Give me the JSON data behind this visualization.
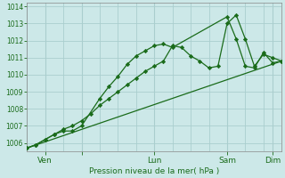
{
  "bg_color": "#cce8e8",
  "grid_color": "#aacece",
  "line_color": "#1a6b1a",
  "marker_color": "#1a6b1a",
  "ylim": [
    1005.5,
    1014.2
  ],
  "yticks": [
    1006,
    1007,
    1008,
    1009,
    1010,
    1011,
    1012,
    1013,
    1014
  ],
  "xlabel": "Pression niveau de la mer( hPa )",
  "xlim": [
    0,
    28
  ],
  "xtick_positions": [
    2,
    6,
    14,
    22,
    27
  ],
  "xtick_labels": [
    "Ven",
    "",
    "Lun",
    "Sam",
    "Dim"
  ],
  "xtick_minor_positions": [
    0,
    2,
    4,
    6,
    8,
    10,
    12,
    14,
    16,
    18,
    20,
    22,
    24,
    26,
    28
  ],
  "series1_x": [
    0,
    1,
    2,
    3,
    4,
    5,
    6,
    8,
    9,
    10,
    11,
    12,
    13,
    14,
    15,
    16,
    22,
    23,
    24,
    25,
    26,
    27,
    28
  ],
  "series1_y": [
    1005.7,
    1005.9,
    1006.2,
    1006.5,
    1006.7,
    1006.7,
    1007.0,
    1008.6,
    1009.3,
    1009.9,
    1010.6,
    1011.1,
    1011.4,
    1011.7,
    1011.8,
    1011.6,
    1013.4,
    1012.1,
    1010.5,
    1010.4,
    1011.3,
    1010.7,
    1010.8
  ],
  "series2_x": [
    0,
    1,
    2,
    3,
    4,
    5,
    6,
    7,
    8,
    9,
    10,
    11,
    12,
    13,
    14,
    15,
    16,
    17,
    18,
    19,
    20,
    21,
    22,
    23,
    24,
    25,
    26,
    27,
    28
  ],
  "series2_y": [
    1005.7,
    1005.9,
    1006.2,
    1006.5,
    1006.8,
    1007.0,
    1007.3,
    1007.7,
    1008.2,
    1008.6,
    1009.0,
    1009.4,
    1009.8,
    1010.2,
    1010.5,
    1010.8,
    1011.7,
    1011.6,
    1011.1,
    1010.8,
    1010.4,
    1010.5,
    1013.0,
    1013.5,
    1012.1,
    1010.5,
    1011.2,
    1011.0,
    1010.8
  ],
  "series3_x": [
    0,
    28
  ],
  "series3_y": [
    1005.7,
    1010.8
  ]
}
